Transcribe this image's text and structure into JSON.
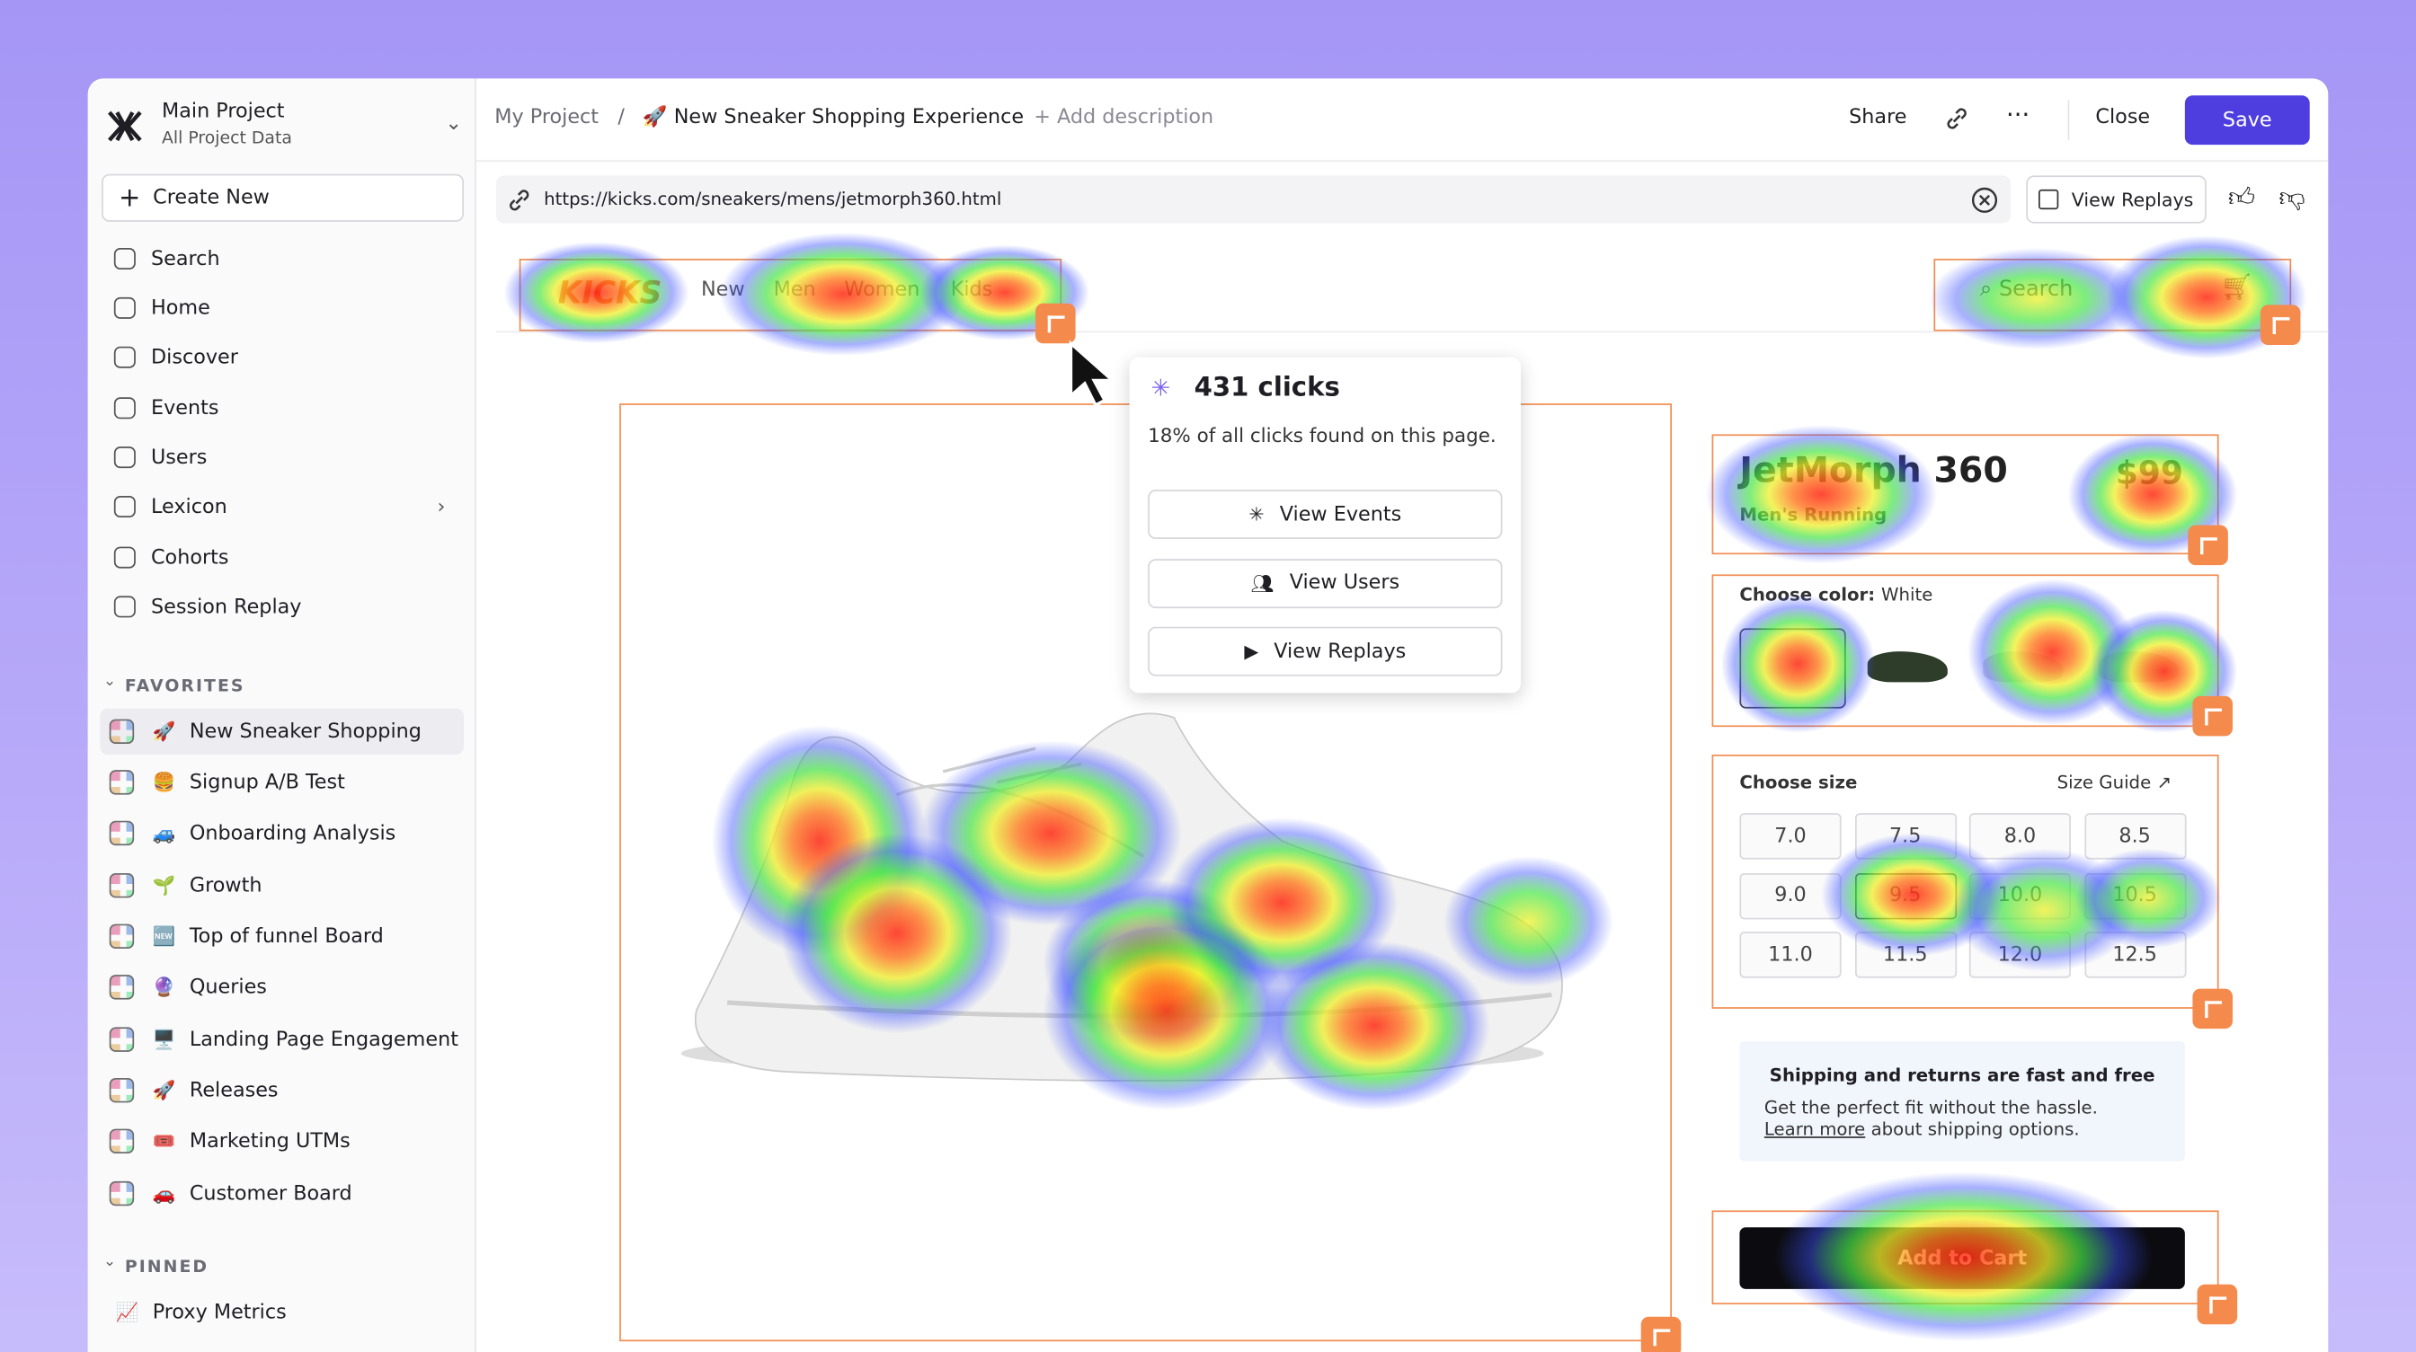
{
  "sidebar": {
    "project": "Main Project",
    "project_sub": "All Project Data",
    "create": "Create New",
    "nav": [
      "Search",
      "Home",
      "Discover",
      "Events",
      "Users",
      "Lexicon",
      "Cohorts",
      "Session Replay"
    ],
    "favorites_label": "FAVORITES",
    "favorites": [
      {
        "icon": "🚀",
        "name": "New Sneaker Shopping"
      },
      {
        "icon": "🍔",
        "name": "Signup A/B Test"
      },
      {
        "icon": "🚙",
        "name": "Onboarding Analysis"
      },
      {
        "icon": "🌱",
        "name": "Growth"
      },
      {
        "icon": "🆕",
        "name": "Top of funnel Board"
      },
      {
        "icon": "🔮",
        "name": "Queries"
      },
      {
        "icon": "🖥️",
        "name": "Landing Page Engagement"
      },
      {
        "icon": "🚀",
        "name": "Releases"
      },
      {
        "icon": "🎟️",
        "name": "Marketing UTMs"
      },
      {
        "icon": "🚗",
        "name": "Customer Board"
      }
    ],
    "pinned_label": "PINNED",
    "pinned": [
      {
        "icon": "📈",
        "name": "Proxy Metrics"
      }
    ]
  },
  "topbar": {
    "breadcrumb": "My Project",
    "separator": "/",
    "title": "🚀 New Sneaker Shopping Experience",
    "add_description": "+ Add description",
    "share": "Share",
    "close": "Close",
    "save": "Save"
  },
  "urlbar": {
    "url": "https://kicks.com/sneakers/mens/jetmorph360.html",
    "view_replays": "View Replays"
  },
  "site": {
    "logo": "KICKS",
    "nav": [
      "New",
      "Men",
      "Women",
      "Kids"
    ],
    "search": "Search",
    "product_name": "JetMorph 360",
    "price": "$99",
    "category": "Men's Running",
    "color_label": "Choose color:",
    "color_value": "White",
    "size_label": "Choose size",
    "size_guide": "Size Guide",
    "sizes": [
      "7.0",
      "7.5",
      "8.0",
      "8.5",
      "9.0",
      "9.5",
      "10.0",
      "10.5",
      "11.0",
      "11.5",
      "12.0",
      "12.5"
    ],
    "shipping_title": "Shipping and returns are fast and free",
    "shipping_text": "Get the perfect fit without the hassle.",
    "learn_more": "Learn more",
    "shipping_tail": "about shipping options.",
    "add_to_cart": "Add to Cart"
  },
  "tooltip": {
    "clicks": "431 clicks",
    "share": "18% of all clicks found on this page.",
    "actions": [
      "View Events",
      "View Users",
      "View Replays"
    ]
  }
}
